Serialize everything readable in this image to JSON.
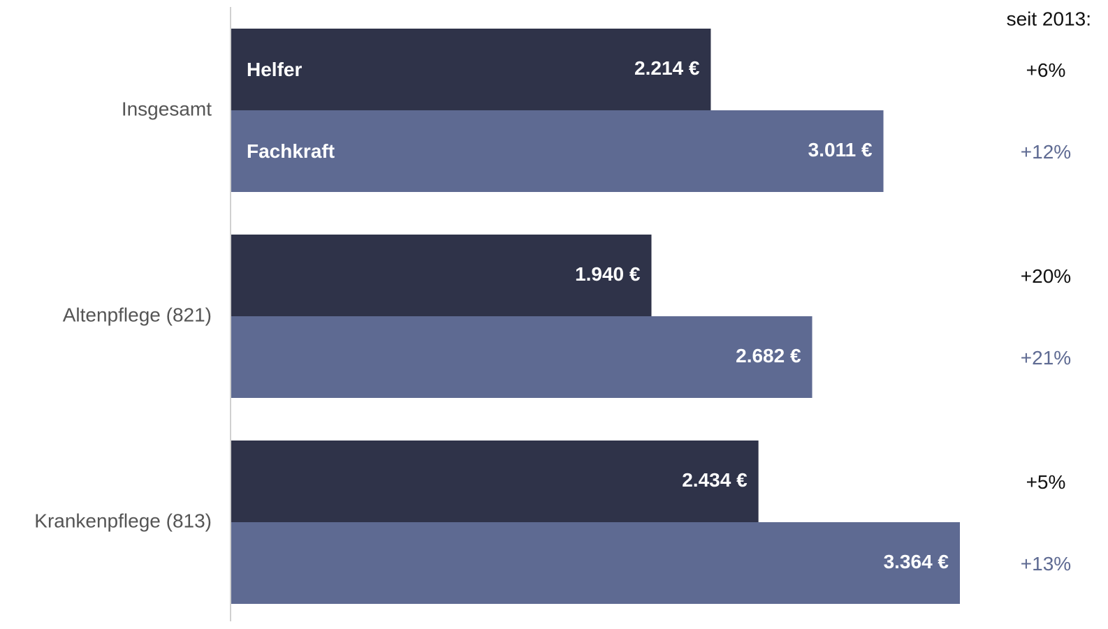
{
  "chart_data": {
    "type": "bar",
    "orientation": "horizontal",
    "categories": [
      "Insgesamt",
      "Altenpflege (821)",
      "Krankenpflege (813)"
    ],
    "change_title": "seit 2013:",
    "series": [
      {
        "name": "Helfer",
        "color": "#2f3349",
        "change_color": "#111111",
        "values": [
          2214,
          1940,
          2434
        ],
        "value_labels": [
          "2.214 €",
          "1.940 €",
          "2.434 €"
        ],
        "change": [
          6,
          20,
          5
        ],
        "change_labels": [
          "+6%",
          "+20%",
          "+5%"
        ]
      },
      {
        "name": "Fachkraft",
        "color": "#5e6a92",
        "change_color": "#5e6a92",
        "values": [
          3011,
          2682,
          3364
        ],
        "value_labels": [
          "3.011 €",
          "2.682 €",
          "3.364 €"
        ],
        "change": [
          12,
          21,
          13
        ],
        "change_labels": [
          "+12%",
          "+21%",
          "+13%"
        ]
      }
    ]
  }
}
